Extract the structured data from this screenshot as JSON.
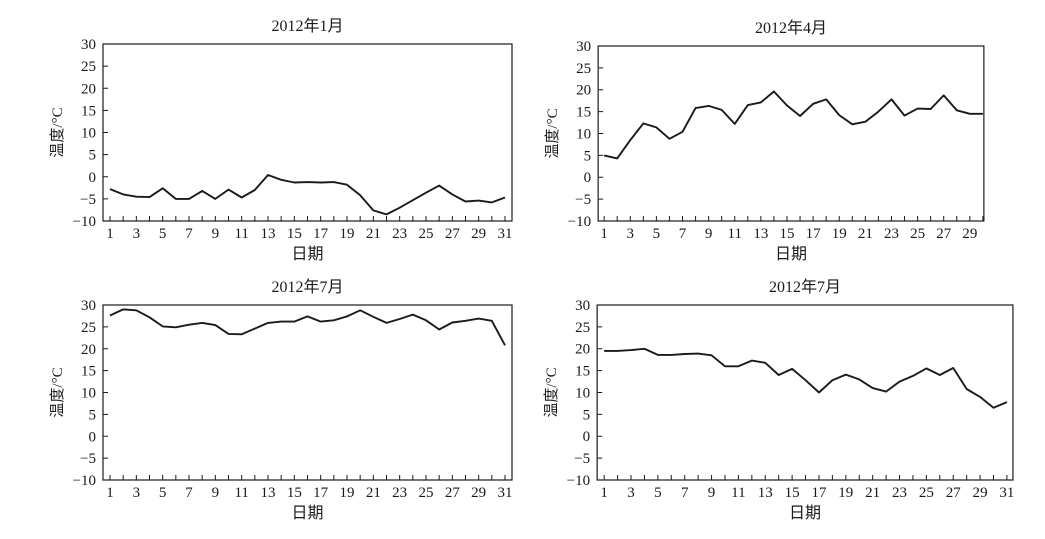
{
  "page": {
    "background_color": "#ffffff",
    "line_color": "#1a1a1a",
    "axis_color": "#1a1a1a"
  },
  "chart_data": [
    {
      "type": "line",
      "title": "2012年1月",
      "xlabel": "日期",
      "ylabel": "温度/°C",
      "ylim": [
        -10,
        30
      ],
      "yticks": [
        30,
        25,
        20,
        15,
        10,
        5,
        0,
        -5,
        -10
      ],
      "x_range": [
        1,
        31
      ],
      "xtick_labels": [
        1,
        3,
        5,
        7,
        9,
        11,
        13,
        15,
        17,
        19,
        21,
        23,
        25,
        27,
        29,
        31
      ],
      "grid": false,
      "legend": null,
      "values": [
        -2.8,
        -4.0,
        -4.5,
        -4.6,
        -2.6,
        -5.0,
        -5.0,
        -3.2,
        -5.0,
        -2.9,
        -4.7,
        -3.0,
        0.4,
        -0.7,
        -1.3,
        -1.2,
        -1.3,
        -1.2,
        -1.8,
        -4.2,
        -7.6,
        -8.5,
        -7.0,
        -5.3,
        -3.6,
        -2.0,
        -4.0,
        -5.6,
        -5.4,
        -5.8,
        -4.7
      ]
    },
    {
      "type": "line",
      "title": "2012年4月",
      "xlabel": "日期",
      "ylabel": "温度/°C",
      "ylim": [
        -10,
        30
      ],
      "yticks": [
        30,
        25,
        20,
        15,
        10,
        5,
        0,
        -5,
        -10
      ],
      "x_range": [
        1,
        30
      ],
      "xtick_labels": [
        1,
        3,
        5,
        7,
        9,
        11,
        13,
        15,
        17,
        19,
        21,
        23,
        25,
        27,
        29
      ],
      "grid": false,
      "legend": null,
      "values": [
        5.0,
        4.3,
        8.5,
        12.3,
        11.4,
        8.8,
        10.4,
        15.8,
        16.3,
        15.4,
        12.2,
        16.5,
        17.1,
        19.6,
        16.4,
        14.0,
        16.8,
        17.8,
        14.2,
        12.1,
        12.7,
        15.0,
        17.8,
        14.1,
        15.7,
        15.6,
        18.7,
        15.3,
        14.5,
        14.5
      ]
    },
    {
      "type": "line",
      "title": "2012年7月",
      "xlabel": "日期",
      "ylabel": "温度/°C",
      "ylim": [
        -10,
        30
      ],
      "yticks": [
        30,
        25,
        20,
        15,
        10,
        5,
        0,
        -5,
        -10
      ],
      "x_range": [
        1,
        31
      ],
      "xtick_labels": [
        1,
        3,
        5,
        7,
        9,
        11,
        13,
        15,
        17,
        19,
        21,
        23,
        25,
        27,
        29,
        31
      ],
      "grid": false,
      "legend": null,
      "values": [
        27.6,
        29.0,
        28.8,
        27.2,
        25.1,
        24.9,
        25.5,
        25.9,
        25.4,
        23.4,
        23.3,
        24.6,
        25.9,
        26.2,
        26.2,
        27.4,
        26.2,
        26.5,
        27.4,
        28.8,
        27.3,
        25.9,
        26.8,
        27.8,
        26.5,
        24.4,
        26.0,
        26.4,
        26.9,
        26.4,
        20.8
      ]
    },
    {
      "type": "line",
      "title": "2012年7月",
      "xlabel": "日期",
      "ylabel": "温度/°C",
      "ylim": [
        -10,
        30
      ],
      "yticks": [
        30,
        25,
        20,
        15,
        10,
        5,
        0,
        -5,
        -10
      ],
      "x_range": [
        1,
        31
      ],
      "xtick_labels": [
        1,
        3,
        5,
        7,
        9,
        11,
        13,
        15,
        17,
        19,
        21,
        23,
        25,
        27,
        29,
        31
      ],
      "grid": false,
      "legend": null,
      "values": [
        19.5,
        19.5,
        19.7,
        20.0,
        18.6,
        18.6,
        18.8,
        18.9,
        18.5,
        16.0,
        16.0,
        17.3,
        16.8,
        14.0,
        15.4,
        12.8,
        10.0,
        12.8,
        14.1,
        13.0,
        11.0,
        10.2,
        12.5,
        13.8,
        15.5,
        14.0,
        15.6,
        10.8,
        9.0,
        6.5,
        7.8
      ]
    }
  ]
}
